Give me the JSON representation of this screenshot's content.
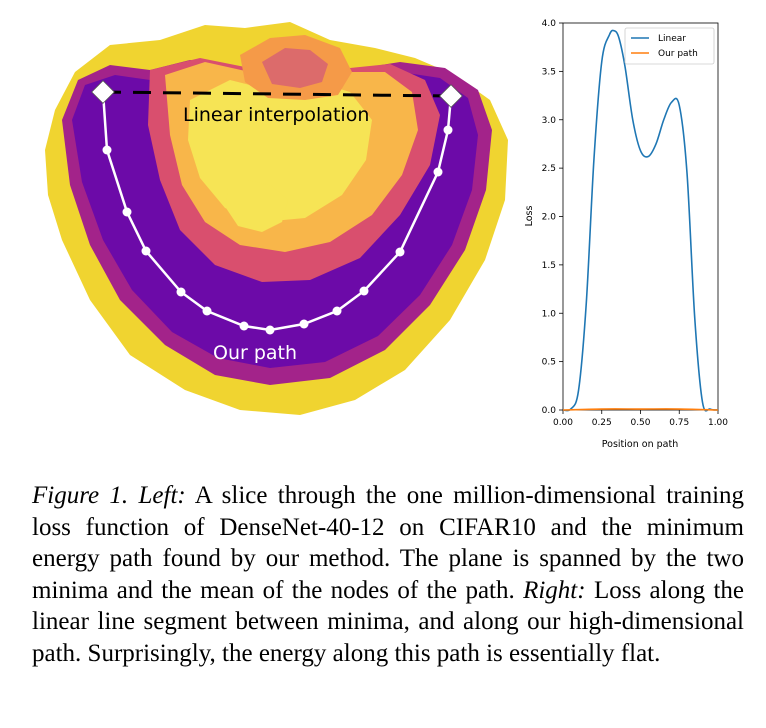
{
  "left_figure": {
    "linear_label": "Linear interpolation",
    "path_label": "Our path",
    "colors": {
      "outer": "#f0d430",
      "band1": "#f6e455",
      "mid1": "#f8b64a",
      "mid2": "#f59a48",
      "peak": "#dc6b6b",
      "ring1": "#d94f6e",
      "ring2": "#a3238a",
      "valley": "#6c0aa8",
      "deep": "#5004a0",
      "path": "#ffffff",
      "linear": "#000000"
    }
  },
  "chart_data": {
    "type": "line",
    "xlabel": "Position on path",
    "ylabel": "Loss",
    "xlim": [
      0.0,
      1.0
    ],
    "ylim": [
      0.0,
      4.0
    ],
    "xticks": [
      "0.00",
      "0.25",
      "0.50",
      "0.75",
      "1.00"
    ],
    "yticks": [
      "0.0",
      "0.5",
      "1.0",
      "1.5",
      "2.0",
      "2.5",
      "3.0",
      "3.5",
      "4.0"
    ],
    "legend_position": "top-right",
    "series": [
      {
        "name": "Linear",
        "color": "#1f77b4",
        "x": [
          0.0,
          0.05,
          0.1,
          0.15,
          0.2,
          0.25,
          0.3,
          0.33,
          0.36,
          0.4,
          0.45,
          0.5,
          0.55,
          0.6,
          0.65,
          0.7,
          0.75,
          0.8,
          0.85,
          0.9,
          0.95,
          1.0
        ],
        "y": [
          0.0,
          0.01,
          0.2,
          1.1,
          2.6,
          3.6,
          3.88,
          3.92,
          3.85,
          3.55,
          3.0,
          2.68,
          2.62,
          2.75,
          3.0,
          3.18,
          3.15,
          2.45,
          0.95,
          0.08,
          0.01,
          0.0
        ]
      },
      {
        "name": "Our path",
        "color": "#ff7f0e",
        "x": [
          0.0,
          0.25,
          0.5,
          0.75,
          1.0
        ],
        "y": [
          0.0,
          0.01,
          0.01,
          0.01,
          0.0
        ]
      }
    ]
  },
  "caption": {
    "figure_label": "Figure 1.",
    "left_label": "Left:",
    "left_text": "A slice through the one million-dimensional training loss function of DenseNet-40-12 on CIFAR10 and the minimum energy path found by our method. The plane is spanned by the two minima and the mean of the nodes of the path.",
    "right_label": "Right:",
    "right_text": "Loss along the linear line segment between minima, and along our high-dimensional path. Surprisingly, the energy along this path is essentially flat."
  }
}
